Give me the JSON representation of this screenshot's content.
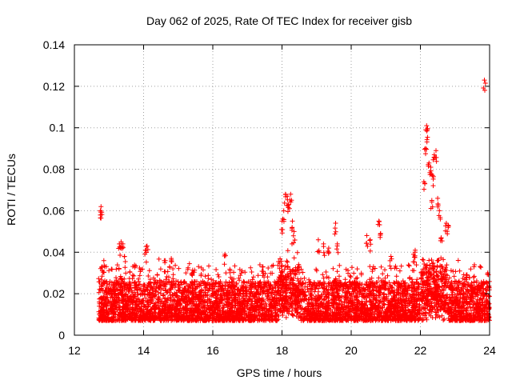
{
  "chart_data": {
    "type": "scatter",
    "title": "Day 062 of 2025, Rate Of TEC Index for receiver gisb",
    "xlabel": "GPS time / hours",
    "ylabel": "ROTI / TECUs",
    "xlim": [
      12,
      24
    ],
    "ylim": [
      0,
      0.14
    ],
    "xticks": [
      12,
      14,
      16,
      18,
      20,
      22,
      24
    ],
    "xtick_labels": [
      "12",
      "14",
      "16",
      "18",
      "20",
      "22",
      "24"
    ],
    "yticks": [
      0,
      0.02,
      0.04,
      0.06,
      0.08,
      0.1,
      0.12,
      0.14
    ],
    "ytick_labels": [
      "0",
      "0.02",
      "0.04",
      "0.06",
      "0.08",
      "0.1",
      "0.12",
      "0.14"
    ],
    "grid": true,
    "marker": "+",
    "color": "#ff0000",
    "series": [
      {
        "name": "ROTI",
        "x_range": [
          12.7,
          24.0
        ],
        "typical_y": [
          0.007,
          0.025
        ],
        "outliers": [
          [
            12.75,
            0.06
          ],
          [
            12.77,
            0.062
          ],
          [
            12.8,
            0.033
          ],
          [
            12.85,
            0.036
          ],
          [
            13.3,
            0.044
          ],
          [
            13.35,
            0.045
          ],
          [
            13.4,
            0.044
          ],
          [
            13.45,
            0.038
          ],
          [
            14.05,
            0.041
          ],
          [
            14.1,
            0.043
          ],
          [
            14.6,
            0.036
          ],
          [
            14.8,
            0.037
          ],
          [
            15.4,
            0.03
          ],
          [
            16.35,
            0.039
          ],
          [
            17.45,
            0.033
          ],
          [
            18.0,
            0.055
          ],
          [
            18.05,
            0.06
          ],
          [
            18.1,
            0.068
          ],
          [
            18.15,
            0.067
          ],
          [
            18.2,
            0.063
          ],
          [
            18.25,
            0.068
          ],
          [
            18.3,
            0.055
          ],
          [
            18.35,
            0.05
          ],
          [
            19.05,
            0.046
          ],
          [
            19.2,
            0.044
          ],
          [
            19.35,
            0.042
          ],
          [
            19.55,
            0.054
          ],
          [
            19.6,
            0.044
          ],
          [
            20.45,
            0.048
          ],
          [
            20.55,
            0.046
          ],
          [
            20.8,
            0.055
          ],
          [
            20.85,
            0.049
          ],
          [
            21.15,
            0.038
          ],
          [
            21.8,
            0.039
          ],
          [
            21.85,
            0.041
          ],
          [
            22.1,
            0.074
          ],
          [
            22.15,
            0.09
          ],
          [
            22.18,
            0.101
          ],
          [
            22.2,
            0.099
          ],
          [
            22.25,
            0.083
          ],
          [
            22.3,
            0.081
          ],
          [
            22.33,
            0.065
          ],
          [
            22.35,
            0.077
          ],
          [
            22.4,
            0.087
          ],
          [
            22.45,
            0.089
          ],
          [
            22.5,
            0.066
          ],
          [
            22.55,
            0.06
          ],
          [
            22.6,
            0.047
          ],
          [
            22.75,
            0.054
          ],
          [
            22.8,
            0.053
          ],
          [
            23.85,
            0.123
          ]
        ]
      }
    ]
  }
}
